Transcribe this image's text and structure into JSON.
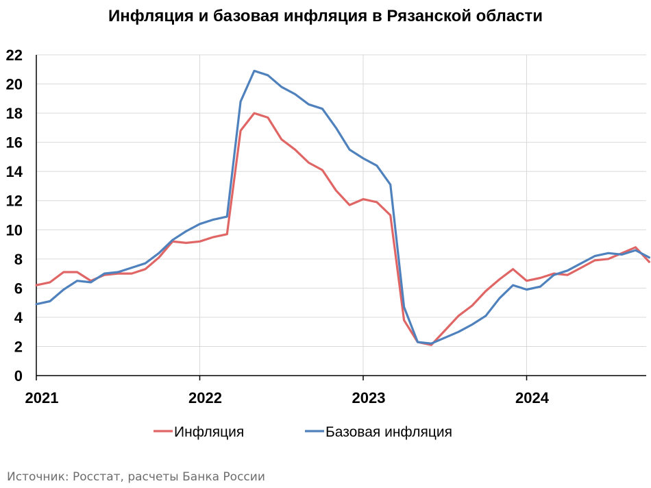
{
  "chart_data": {
    "type": "line",
    "title": "Инфляция и базовая инфляция в Рязанской области",
    "xlabel": "",
    "ylabel": "",
    "ylim": [
      0,
      22
    ],
    "y_ticks": [
      0,
      2,
      4,
      6,
      8,
      10,
      12,
      14,
      16,
      18,
      20,
      22
    ],
    "x_ticks": [
      "2021",
      "2022",
      "2023",
      "2024"
    ],
    "grid": true,
    "legend_position": "bottom",
    "x": [
      "2021-01",
      "2021-02",
      "2021-03",
      "2021-04",
      "2021-05",
      "2021-06",
      "2021-07",
      "2021-08",
      "2021-09",
      "2021-10",
      "2021-11",
      "2021-12",
      "2022-01",
      "2022-02",
      "2022-03",
      "2022-04",
      "2022-05",
      "2022-06",
      "2022-07",
      "2022-08",
      "2022-09",
      "2022-10",
      "2022-11",
      "2022-12",
      "2023-01",
      "2023-02",
      "2023-03",
      "2023-04",
      "2023-05",
      "2023-06",
      "2023-07",
      "2023-08",
      "2023-09",
      "2023-10",
      "2023-11",
      "2023-12",
      "2024-01",
      "2024-02",
      "2024-03",
      "2024-04",
      "2024-05",
      "2024-06",
      "2024-07",
      "2024-08",
      "2024-09",
      "2024-10"
    ],
    "series": [
      {
        "name": "Инфляция",
        "color": "#e06666",
        "values": [
          6.2,
          6.4,
          7.1,
          7.1,
          6.5,
          6.9,
          7.0,
          7.0,
          7.3,
          8.1,
          9.2,
          9.1,
          9.2,
          9.5,
          9.7,
          16.8,
          18.0,
          17.7,
          16.2,
          15.5,
          14.6,
          14.1,
          12.7,
          11.7,
          12.1,
          11.9,
          11.0,
          3.8,
          2.3,
          2.1,
          3.1,
          4.1,
          4.8,
          5.8,
          6.6,
          7.3,
          6.5,
          6.7,
          7.0,
          6.9,
          7.4,
          7.9,
          8.0,
          8.4,
          8.8,
          7.8
        ]
      },
      {
        "name": "Базовая инфляция",
        "color": "#4f81bd",
        "values": [
          4.9,
          5.1,
          5.9,
          6.5,
          6.4,
          7.0,
          7.1,
          7.4,
          7.7,
          8.4,
          9.3,
          9.9,
          10.4,
          10.7,
          10.9,
          18.8,
          20.9,
          20.6,
          19.8,
          19.3,
          18.6,
          18.3,
          17.0,
          15.5,
          14.9,
          14.4,
          13.1,
          4.7,
          2.3,
          2.2,
          2.6,
          3.0,
          3.5,
          4.1,
          5.3,
          6.2,
          5.9,
          6.1,
          6.9,
          7.2,
          7.7,
          8.2,
          8.4,
          8.3,
          8.6,
          8.1
        ]
      }
    ]
  },
  "source": "Источник: Росстат, расчеты Банка России"
}
